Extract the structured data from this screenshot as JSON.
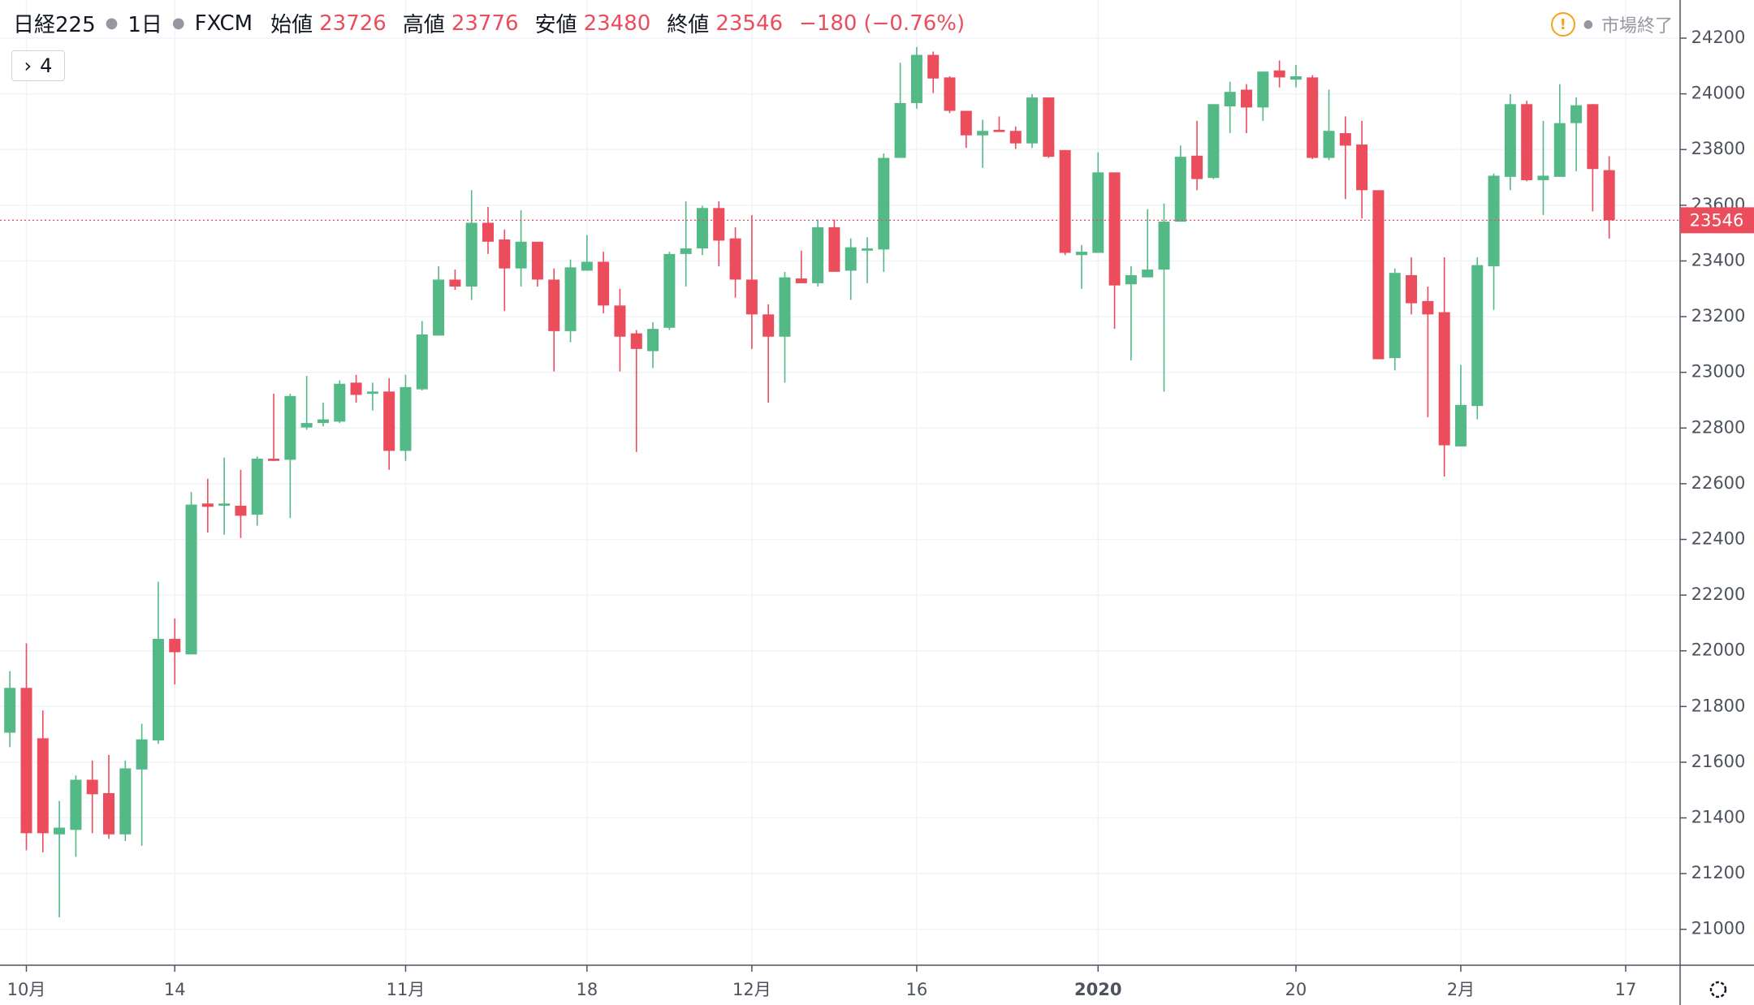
{
  "chart_data": {
    "type": "candlestick",
    "title": "日経225",
    "interval": "1日",
    "source": "FXCM",
    "legend_labels": {
      "open": "始値",
      "high": "高値",
      "low": "安値",
      "close": "終値"
    },
    "change": "−180",
    "change_pct": "(−0.76%)",
    "status": "市場終了",
    "up_color": "#53b987",
    "down_color": "#eb4d5c",
    "open": [
      21706,
      21867,
      21686,
      21341,
      21357,
      21537,
      21489,
      21341,
      21574,
      21678,
      22043,
      21987,
      22529,
      22521,
      22521,
      22489,
      22690,
      22686,
      22802,
      22818,
      22823,
      22963,
      22923,
      22931,
      22718,
      22939,
      23132,
      23333,
      23308,
      23537,
      23477,
      23373,
      23469,
      23333,
      23148,
      23365,
      23397,
      23240,
      23140,
      23076,
      23160,
      23425,
      23445,
      23590,
      23481,
      23333,
      23208,
      23128,
      23337,
      23320,
      23521,
      23365,
      23437,
      23441,
      23770,
      23967,
      24140,
      24059,
      23939,
      23851,
      23871,
      23867,
      23822,
      23987,
      23798,
      23421,
      23429,
      23718,
      23316,
      23341,
      23369,
      23541,
      23778,
      23698,
      23955,
      24015,
      23951,
      24084,
      24051,
      24059,
      23770,
      23859,
      23818,
      23654,
      23051,
      23349,
      23256,
      23216,
      22734,
      22879,
      23381,
      23702,
      23963,
      23690,
      23702,
      23895,
      23963,
      23726
    ],
    "high": [
      21927,
      22027,
      21786,
      21461,
      21553,
      21606,
      21626,
      21606,
      21738,
      22248,
      22116,
      22570,
      22618,
      22694,
      22650,
      22698,
      22923,
      22923,
      22987,
      22891,
      22971,
      22991,
      22963,
      22979,
      22991,
      23184,
      23381,
      23369,
      23654,
      23594,
      23513,
      23582,
      23469,
      23373,
      23405,
      23493,
      23433,
      23300,
      23152,
      23180,
      23433,
      23614,
      23598,
      23614,
      23521,
      23565,
      23244,
      23361,
      23437,
      23549,
      23549,
      23481,
      23485,
      23786,
      24112,
      24168,
      24152,
      24063,
      23939,
      23907,
      23919,
      23883,
      23999,
      23987,
      23798,
      23457,
      23790,
      23718,
      23381,
      23586,
      23606,
      23814,
      23903,
      23963,
      24043,
      24035,
      24080,
      24120,
      24104,
      24067,
      24015,
      23919,
      23903,
      23654,
      23373,
      23413,
      23308,
      23413,
      23027,
      23413,
      23714,
      23999,
      23975,
      23903,
      24035,
      23987,
      23963,
      23776
    ],
    "low": [
      21654,
      21284,
      21276,
      21043,
      21260,
      21345,
      21325,
      21317,
      21300,
      21666,
      21879,
      21987,
      22425,
      22417,
      22405,
      22449,
      22682,
      22477,
      22794,
      22806,
      22818,
      22891,
      22863,
      22650,
      22682,
      22935,
      23132,
      23296,
      23260,
      23425,
      23220,
      23308,
      23308,
      23003,
      23108,
      23365,
      23212,
      23003,
      22714,
      23015,
      23152,
      23308,
      23421,
      23381,
      23268,
      23084,
      22891,
      22963,
      23320,
      23308,
      23361,
      23260,
      23320,
      23361,
      23770,
      23947,
      24003,
      23931,
      23806,
      23734,
      23863,
      23802,
      23806,
      23770,
      23421,
      23300,
      23429,
      23156,
      23043,
      23341,
      22931,
      23541,
      23654,
      23694,
      23859,
      23859,
      23903,
      24023,
      24023,
      23766,
      23762,
      23622,
      23553,
      23047,
      23007,
      23208,
      22839,
      22626,
      22734,
      22831,
      23224,
      23654,
      23686,
      23565,
      23702,
      23722,
      23578,
      23480
    ],
    "close": [
      21867,
      21345,
      21345,
      21365,
      21537,
      21485,
      21341,
      21578,
      21682,
      22043,
      21995,
      22525,
      22517,
      22529,
      22485,
      22690,
      22682,
      22915,
      22818,
      22831,
      22959,
      22919,
      22931,
      22718,
      22947,
      23136,
      23333,
      23308,
      23537,
      23469,
      23373,
      23469,
      23333,
      23148,
      23377,
      23397,
      23240,
      23128,
      23084,
      23156,
      23425,
      23445,
      23590,
      23473,
      23333,
      23208,
      23128,
      23341,
      23320,
      23521,
      23361,
      23449,
      23445,
      23770,
      23967,
      24140,
      24055,
      23939,
      23851,
      23867,
      23863,
      23822,
      23987,
      23774,
      23429,
      23433,
      23718,
      23312,
      23349,
      23369,
      23541,
      23774,
      23694,
      23963,
      24007,
      23951,
      24080,
      24059,
      24063,
      23770,
      23867,
      23814,
      23654,
      23047,
      23357,
      23248,
      23208,
      22738,
      22883,
      23385,
      23706,
      23963,
      23690,
      23706,
      23895,
      23959,
      23730,
      23546
    ],
    "ylim": [
      20871,
      24337
    ],
    "yticks": [
      21000,
      21200,
      21400,
      21600,
      21800,
      22000,
      22200,
      22400,
      22600,
      22800,
      23000,
      23200,
      23400,
      23600,
      23800,
      24000,
      24200
    ],
    "xlim": [
      -0.6,
      101.3
    ],
    "xticks": [
      {
        "value": 1,
        "label": "10月"
      },
      {
        "value": 10,
        "label": "14"
      },
      {
        "value": 24,
        "label": "11月"
      },
      {
        "value": 35,
        "label": "18"
      },
      {
        "value": 45,
        "label": "12月"
      },
      {
        "value": 55,
        "label": "16"
      },
      {
        "value": 66,
        "label": "2020"
      },
      {
        "value": 78,
        "label": "20"
      },
      {
        "value": 88,
        "label": "2月"
      },
      {
        "value": 98,
        "label": "17"
      }
    ],
    "grid": true
  },
  "ui": {
    "indicator_count": "4"
  }
}
